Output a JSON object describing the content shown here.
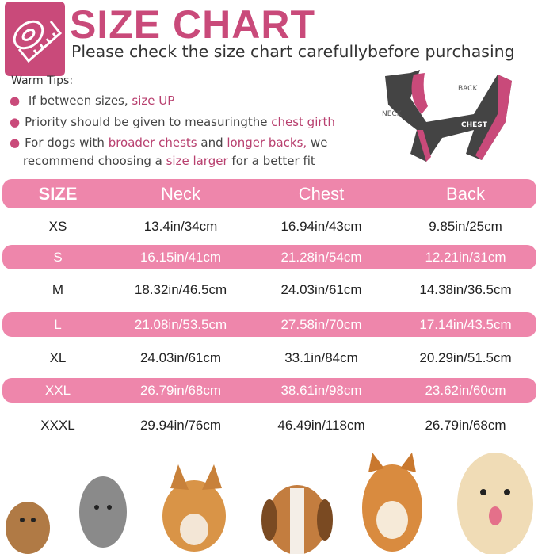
{
  "header": {
    "title": "SIZE CHART",
    "subtitle": "Please check the size chart carefullybefore purchasing"
  },
  "tips": {
    "title": "Warm Tips:",
    "items": [
      {
        "text": " If between sizes, ",
        "highlight": "size UP"
      },
      {
        "text": "Priority should be given to measuringthe ",
        "highlight": "chest girth"
      },
      {
        "text": "For dogs with ",
        "highlight": "broader chests",
        "text2": " and ",
        "highlight2": "longer backs,",
        "text3": " we"
      }
    ],
    "line4": {
      "text": "recommend choosing a ",
      "highlight": "size larger",
      "text2": " for a better fit"
    }
  },
  "diagram": {
    "back": "BACK",
    "neck": "NECK",
    "chest": "CHEST"
  },
  "table": {
    "headers": [
      "SIZE",
      "Neck",
      "Chest",
      "Back"
    ],
    "rows": [
      [
        "XS",
        "13.4in/34cm",
        "16.94in/43cm",
        "9.85in/25cm"
      ],
      [
        "S",
        "16.15in/41cm",
        "21.28in/54cm",
        "12.21in/31cm"
      ],
      [
        "M",
        "18.32in/46.5cm",
        "24.03in/61cm",
        "14.38in/36.5cm"
      ],
      [
        "L",
        "21.08in/53.5cm",
        "27.58in/70cm",
        "17.14in/43.5cm"
      ],
      [
        "XL",
        "24.03in/61cm",
        "33.1in/84cm",
        "20.29in/51.5cm"
      ],
      [
        "XXL",
        "26.79in/68cm",
        "38.61in/98cm",
        "23.62in/60cm"
      ],
      [
        "XXXL",
        "29.94in/76cm",
        "46.49in/118cm",
        "26.79in/68cm"
      ]
    ]
  },
  "colors": {
    "brand": "#c94a7a",
    "row_pink": "#ee86ab",
    "harness": "#444444"
  }
}
